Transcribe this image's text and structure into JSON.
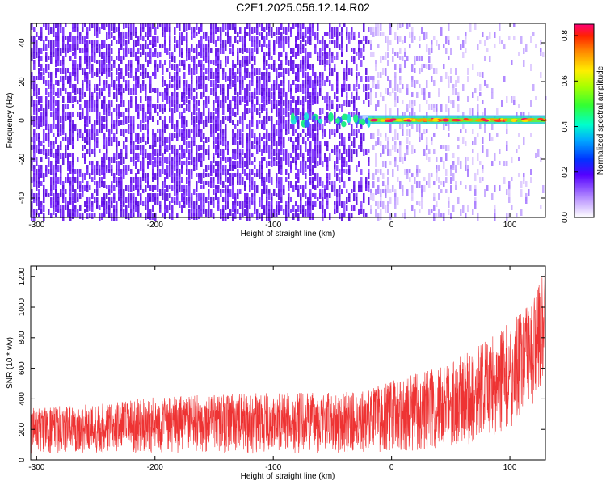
{
  "title": "C2E1.2025.056.12.14.R02",
  "colors": {
    "spectrogram_low": "#d8c2ff",
    "spectrogram_mid": "#6a1cf0",
    "snr_line": "#ee3333"
  },
  "chart_data": [
    {
      "type": "heatmap",
      "xlabel": "Height of straight line (km)",
      "ylabel": "Frequency (Hz)",
      "xlim": [
        -305,
        130
      ],
      "ylim": [
        -50,
        50
      ],
      "xticks": [
        -300,
        -200,
        -100,
        0,
        100
      ],
      "yticks": [
        -40,
        -20,
        0,
        20,
        40
      ],
      "xtick_labels": [
        "-300",
        "-200",
        "-100",
        "0",
        "100"
      ],
      "ytick_labels": [
        "-40",
        "-20",
        "0",
        "20",
        "40"
      ],
      "grid": false,
      "description_of_signal": {
        "carrier_frequency": 0,
        "carrier_visible_from_height": -90,
        "noise_region_end_height": -20
      },
      "colorbar": {
        "label": "Normalized spectral amplitude",
        "range": [
          0,
          0.85
        ],
        "ticks": [
          0,
          0.2,
          0.4,
          0.6,
          0.8
        ],
        "tick_labels": [
          "0.0",
          "0.2",
          "0.4",
          "0.6",
          "0.8"
        ],
        "colormap": "rainbow",
        "placement": "right"
      }
    },
    {
      "type": "line",
      "xlabel": "Height of straight line (km)",
      "ylabel": "SNR (10 * v/v)",
      "xlim": [
        -305,
        130
      ],
      "ylim": [
        0,
        1270
      ],
      "xticks": [
        -300,
        -200,
        -100,
        0,
        100
      ],
      "yticks": [
        0,
        200,
        400,
        600,
        800,
        1000,
        1200
      ],
      "xtick_labels": [
        "-300",
        "-200",
        "-100",
        "0",
        "100"
      ],
      "ytick_labels": [
        "0",
        "200",
        "400",
        "600",
        "800",
        "1000",
        "1200"
      ],
      "grid": false,
      "series": [
        {
          "envelope_x": [
            -305,
            -250,
            -200,
            -150,
            -100,
            -50,
            -25,
            0,
            25,
            50,
            75,
            100,
            115,
            130
          ],
          "envelope_low": [
            40,
            40,
            45,
            45,
            40,
            45,
            50,
            55,
            60,
            80,
            120,
            200,
            300,
            500
          ],
          "envelope_high": [
            340,
            370,
            410,
            430,
            440,
            440,
            450,
            520,
            580,
            650,
            760,
            900,
            1010,
            1240
          ]
        }
      ]
    }
  ]
}
